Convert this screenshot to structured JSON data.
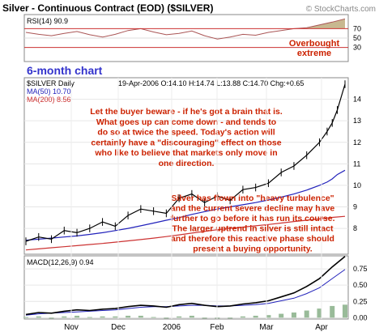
{
  "header": {
    "title": "Silver - Continuous Contract (EOD) ($SILVER)",
    "watermark": "© StockCharts.com"
  },
  "rsi_panel": {
    "label": "RSI(14) 90.9",
    "levels": [
      "70",
      "50",
      "30"
    ],
    "annotation_line1": "Overbought",
    "annotation_line2": "extreme"
  },
  "banner": "6-month chart",
  "price_panel": {
    "symbol_label": "$SILVER Daily",
    "ohlc": "19-Apr-2006 O:14.10 H:14.74 L:13.88 C:14.70 Chg:+0.65",
    "ma50_label": "MA(50) 10.70",
    "ma200_label": "MA(200) 8.56",
    "note1": [
      "Let the buyer beware - if he's got a brain that is.",
      "What goes up can come down - and tends to",
      "do so at twice the speed. Today's action will",
      "certainly have a \"discouraging\" effect on those",
      "who like to believe that markets only move in",
      "one direction."
    ],
    "note2": [
      "Silver has flown into \"heavy turbulence\"",
      "and the current severe decline may have",
      "further to go before it has run its course.",
      "The larger uptrend in silver is still intact",
      "and therefore this reactive phase should",
      "present a buying opportunity."
    ]
  },
  "macd_panel": {
    "label": "MACD(12,26,9) 0.94"
  },
  "x_axis": [
    "Nov",
    "Dec",
    "2006",
    "Feb",
    "Mar",
    "Apr"
  ],
  "colors": {
    "accent": "#3333cc",
    "annotation": "#cc2200",
    "rsi_fill": "#c8b890",
    "ma50": "#2222bb",
    "ma200": "#cc3333",
    "grid": "#e6e6e6"
  },
  "chart_data": [
    {
      "type": "line",
      "name": "RSI",
      "ylim": [
        0,
        100
      ],
      "ticks": [
        30,
        50,
        70
      ],
      "x": [
        0,
        5,
        10,
        15,
        20,
        25,
        30,
        35,
        40,
        45,
        50,
        55,
        60,
        65,
        70,
        75,
        80,
        85,
        90,
        95,
        100,
        105,
        110,
        115,
        120,
        125
      ],
      "y": [
        62,
        58,
        55,
        60,
        64,
        57,
        52,
        58,
        66,
        70,
        63,
        57,
        60,
        65,
        55,
        48,
        52,
        58,
        56,
        62,
        66,
        70,
        72,
        78,
        84,
        90.9
      ]
    },
    {
      "type": "line",
      "name": "price",
      "ylim": [
        6.8,
        15
      ],
      "ticks": [
        8,
        9,
        10,
        11,
        12,
        13,
        14
      ],
      "x": [
        0,
        5,
        10,
        15,
        20,
        25,
        30,
        35,
        40,
        45,
        50,
        55,
        60,
        65,
        70,
        75,
        80,
        85,
        90,
        95,
        100,
        105,
        110,
        115,
        118,
        120,
        122,
        125
      ],
      "close": [
        7.4,
        7.6,
        7.5,
        7.9,
        7.8,
        8.0,
        8.3,
        8.1,
        8.6,
        8.9,
        8.8,
        8.7,
        9.4,
        9.6,
        9.2,
        9.5,
        9.3,
        9.8,
        9.9,
        10.1,
        10.6,
        10.9,
        11.4,
        12.0,
        12.5,
        12.9,
        13.5,
        14.7
      ],
      "ma50": [
        7.45,
        7.5,
        7.55,
        7.6,
        7.65,
        7.72,
        7.8,
        7.9,
        8.0,
        8.12,
        8.25,
        8.38,
        8.5,
        8.65,
        8.78,
        8.9,
        9.0,
        9.1,
        9.2,
        9.32,
        9.45,
        9.6,
        9.78,
        10.0,
        10.15,
        10.3,
        10.5,
        10.7
      ],
      "ma200": [
        7.0,
        7.05,
        7.1,
        7.15,
        7.2,
        7.25,
        7.3,
        7.36,
        7.42,
        7.48,
        7.55,
        7.62,
        7.7,
        7.78,
        7.86,
        7.94,
        8.0,
        8.06,
        8.12,
        8.18,
        8.25,
        8.32,
        8.38,
        8.44,
        8.48,
        8.51,
        8.53,
        8.56
      ]
    },
    {
      "type": "line",
      "name": "MACD",
      "ylim": [
        -0.02,
        0.95
      ],
      "ticks": [
        0.0,
        0.25,
        0.5,
        0.75
      ],
      "x": [
        0,
        5,
        10,
        15,
        20,
        25,
        30,
        35,
        40,
        45,
        50,
        55,
        60,
        65,
        70,
        75,
        80,
        85,
        90,
        95,
        100,
        105,
        110,
        115,
        120,
        125
      ],
      "macd": [
        0.05,
        0.08,
        0.07,
        0.1,
        0.12,
        0.11,
        0.13,
        0.14,
        0.17,
        0.19,
        0.18,
        0.16,
        0.2,
        0.22,
        0.19,
        0.17,
        0.18,
        0.21,
        0.23,
        0.26,
        0.32,
        0.38,
        0.48,
        0.6,
        0.78,
        0.94
      ],
      "signal": [
        0.04,
        0.06,
        0.07,
        0.08,
        0.09,
        0.1,
        0.11,
        0.12,
        0.14,
        0.16,
        0.17,
        0.17,
        0.18,
        0.19,
        0.19,
        0.18,
        0.18,
        0.19,
        0.2,
        0.22,
        0.26,
        0.3,
        0.37,
        0.46,
        0.6,
        0.74
      ]
    }
  ]
}
